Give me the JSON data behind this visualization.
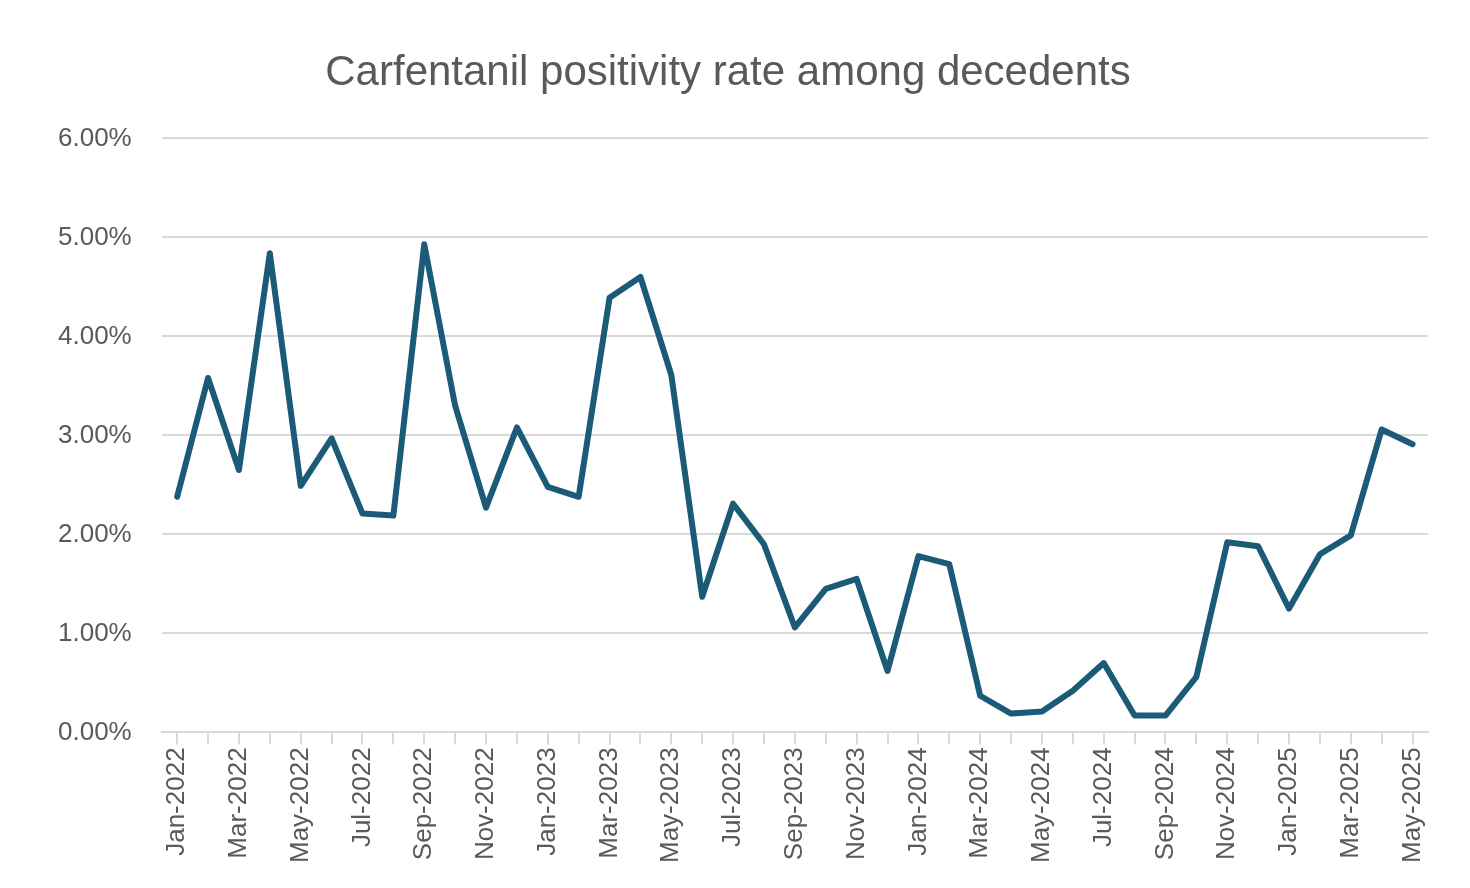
{
  "chart_data": {
    "type": "line",
    "title": "Carfentanil positivity rate among decedents",
    "categories": [
      "Jan-2022",
      null,
      "Mar-2022",
      null,
      "May-2022",
      null,
      "Jul-2022",
      null,
      "Sep-2022",
      null,
      "Nov-2022",
      null,
      "Jan-2023",
      null,
      "Mar-2023",
      null,
      "May-2023",
      null,
      "Jul-2023",
      null,
      "Sep-2023",
      null,
      "Nov-2023",
      null,
      "Jan-2024",
      null,
      "Mar-2024",
      null,
      "May-2024",
      null,
      "Jul-2024",
      null,
      "Sep-2024",
      null,
      "Nov-2024",
      null,
      "Jan-2025",
      null,
      "Mar-2025",
      null,
      "May-2025"
    ],
    "series": [
      {
        "color": "#1b5b78",
        "values": [
          2.38,
          3.58,
          2.65,
          4.84,
          2.49,
          2.97,
          2.21,
          2.19,
          4.93,
          3.3,
          2.27,
          3.08,
          2.48,
          2.38,
          4.39,
          4.6,
          3.61,
          1.37,
          2.31,
          1.9,
          1.06,
          1.45,
          1.55,
          0.62,
          1.78,
          1.7,
          0.37,
          0.19,
          0.21,
          0.42,
          0.7,
          0.17,
          0.17,
          0.56,
          1.92,
          1.88,
          1.25,
          1.8,
          1.99,
          3.06,
          2.91
        ]
      }
    ],
    "ylim": [
      0,
      6
    ],
    "yticks": [
      {
        "value": 0,
        "label": "0.00%"
      },
      {
        "value": 1,
        "label": "1.00%"
      },
      {
        "value": 2,
        "label": "2.00%"
      },
      {
        "value": 3,
        "label": "3.00%"
      },
      {
        "value": 4,
        "label": "4.00%"
      },
      {
        "value": 5,
        "label": "5.00%"
      },
      {
        "value": 6,
        "label": "6.00%"
      }
    ],
    "grid": "y",
    "legend": false,
    "marker": "none",
    "line_style": "solid"
  }
}
